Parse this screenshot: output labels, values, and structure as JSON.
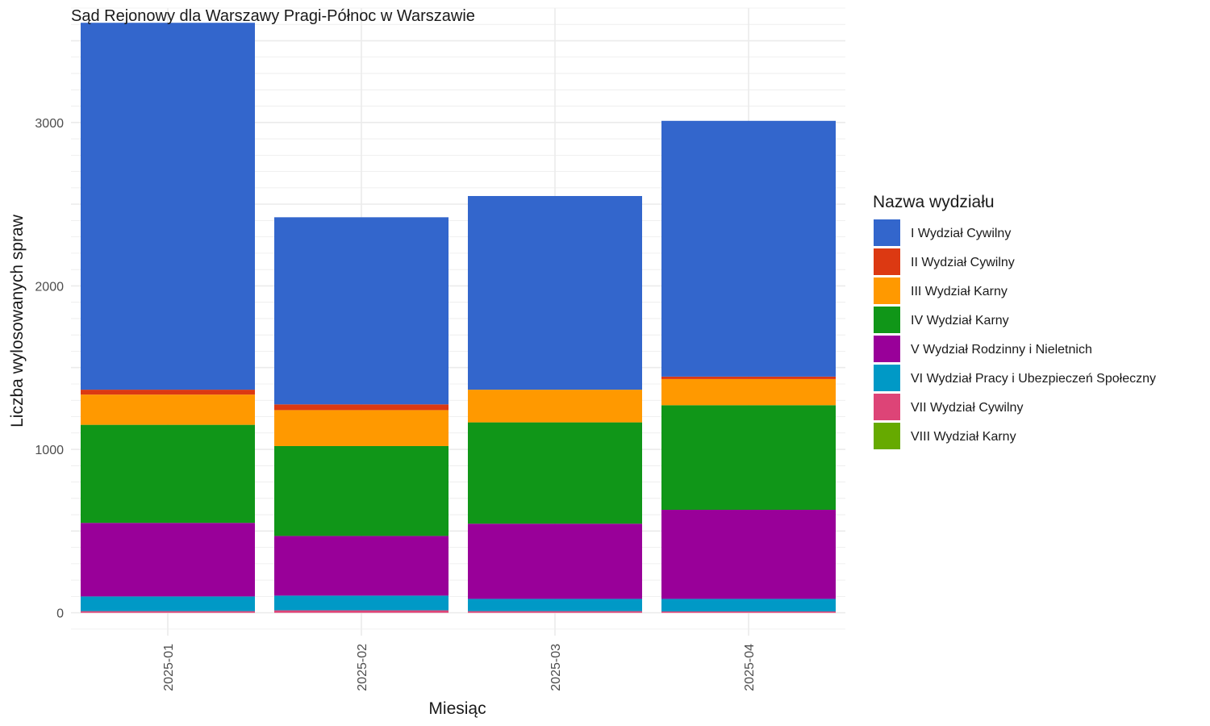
{
  "chart_data": {
    "type": "bar",
    "stacked": true,
    "title": "Sąd Rejonowy dla Warszawy Pragi-Północ w Warszawie",
    "xlabel": "Miesiąc",
    "ylabel": "Liczba wylosowanych spraw",
    "categories": [
      "2025-01",
      "2025-02",
      "2025-03",
      "2025-04"
    ],
    "ylim": [
      -140,
      3700
    ],
    "yticks": [
      0,
      1000,
      2000,
      3000
    ],
    "grid": true,
    "legend": {
      "title": "Nazwa wydziału",
      "position": "right"
    },
    "series": [
      {
        "name": "VIII Wydział Karny",
        "color": "#66AA00",
        "values": [
          0,
          0,
          0,
          0
        ]
      },
      {
        "name": "VII Wydział Cywilny",
        "color": "#DD4477",
        "values": [
          10,
          15,
          10,
          8
        ]
      },
      {
        "name": "VI Wydział Pracy i Ubezpieczeń Społeczny",
        "color": "#0099C6",
        "values": [
          90,
          90,
          75,
          77
        ]
      },
      {
        "name": "V Wydział Rodzinny i Nieletnich",
        "color": "#990099",
        "values": [
          450,
          365,
          460,
          545
        ]
      },
      {
        "name": "IV Wydział Karny",
        "color": "#109618",
        "values": [
          600,
          550,
          620,
          640
        ]
      },
      {
        "name": "III Wydział Karny",
        "color": "#FF9900",
        "values": [
          185,
          220,
          200,
          160
        ]
      },
      {
        "name": "II Wydział Cywilny",
        "color": "#DC3912",
        "values": [
          30,
          35,
          0,
          15
        ]
      },
      {
        "name": "I Wydział Cywilny",
        "color": "#3366CC",
        "values": [
          2245,
          1145,
          1185,
          1565
        ]
      }
    ]
  }
}
